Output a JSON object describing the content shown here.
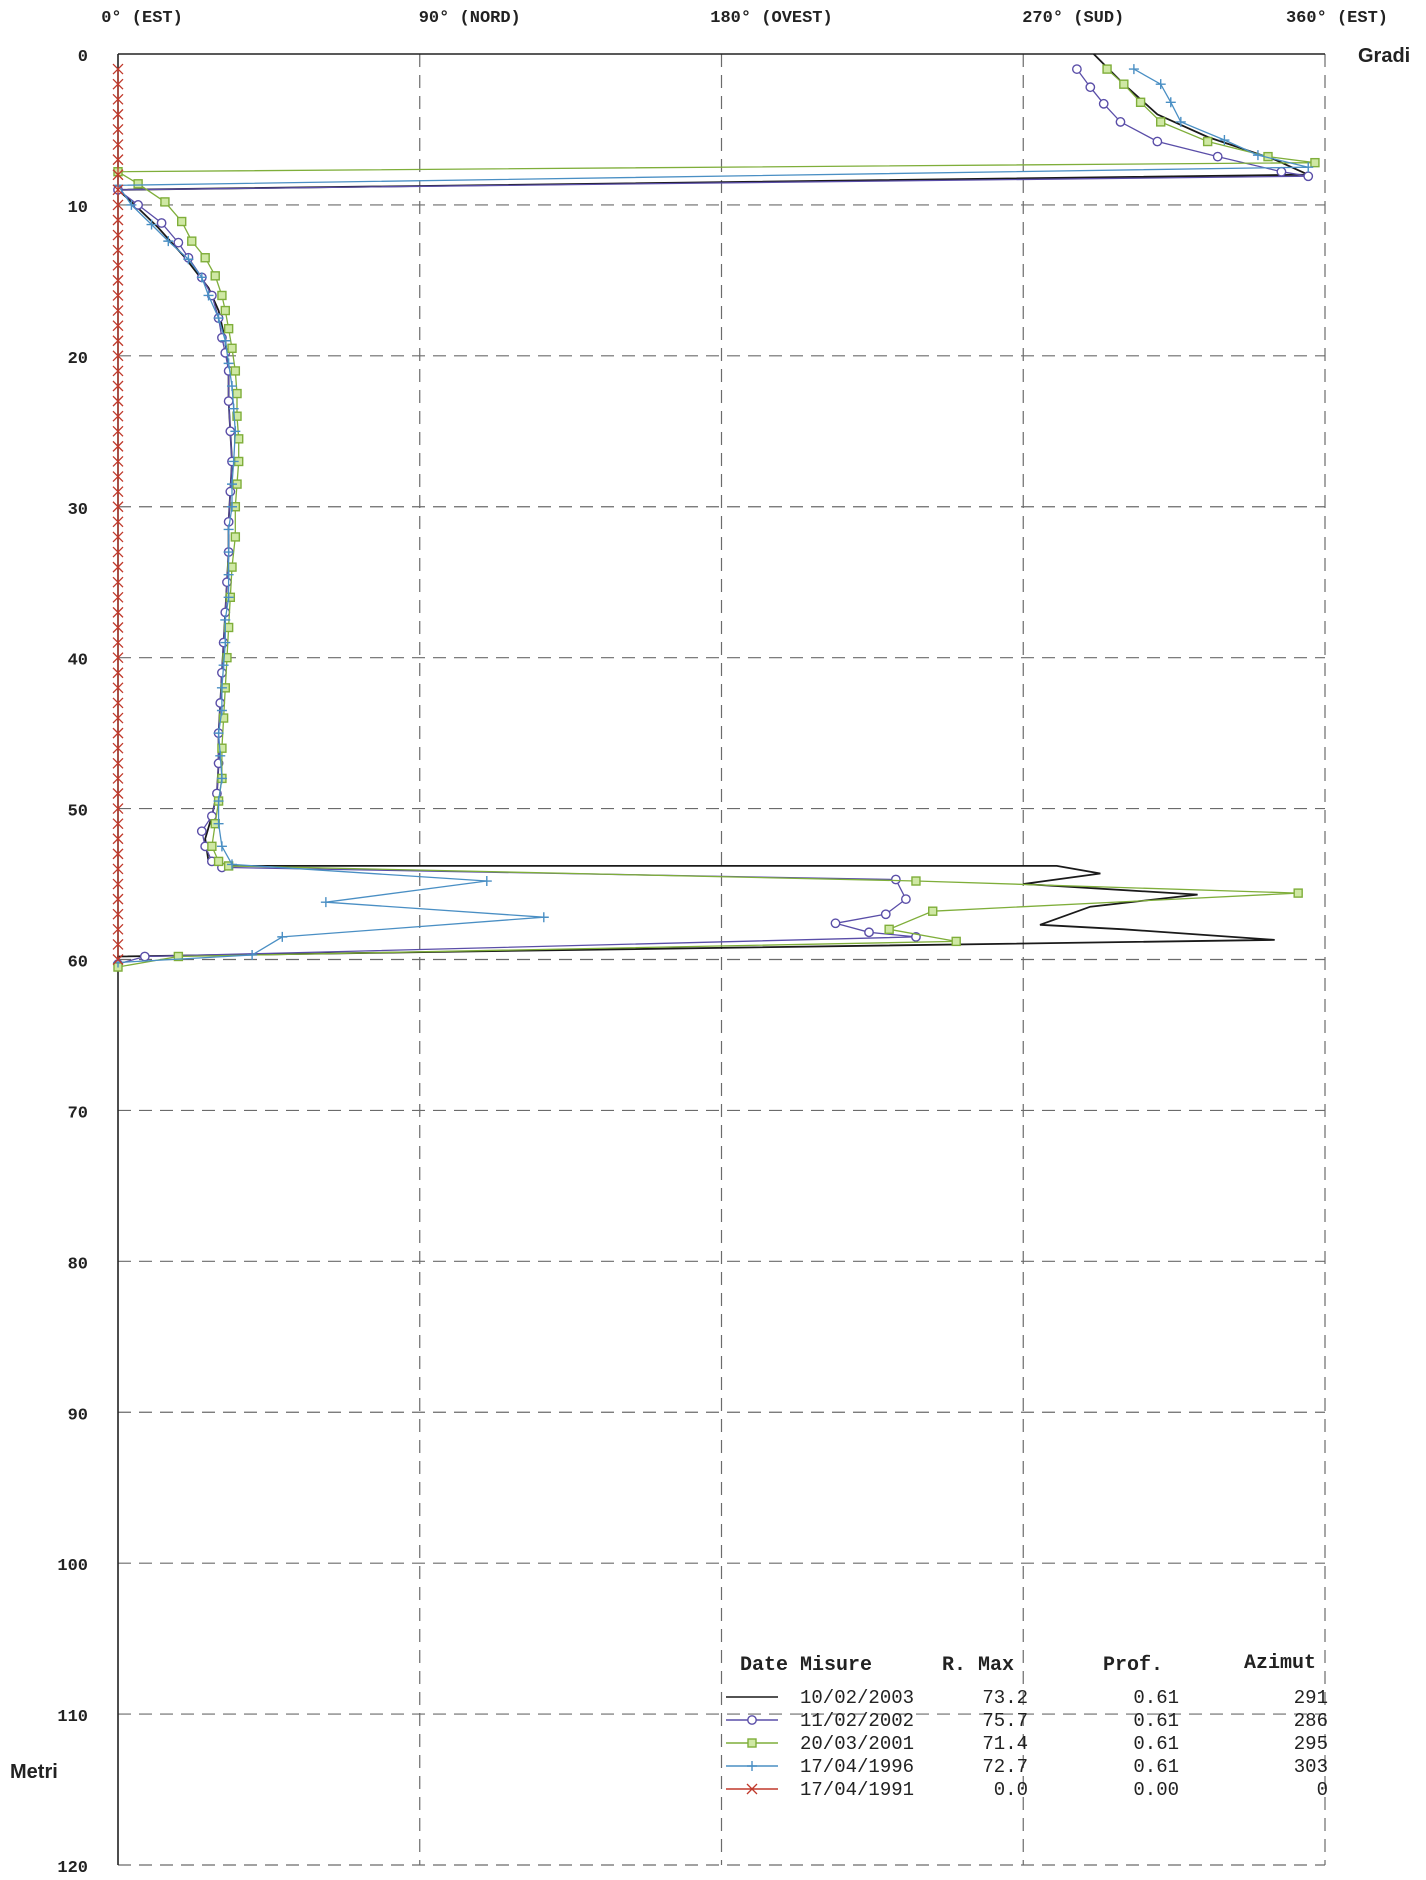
{
  "chart_data": {
    "type": "line",
    "x_axis": {
      "label": "Gradi",
      "min": 0,
      "max": 360,
      "ticks": [
        {
          "value": 0,
          "label": "0° (EST)"
        },
        {
          "value": 90,
          "label": "90° (NORD)"
        },
        {
          "value": 180,
          "label": "180° (OVEST)"
        },
        {
          "value": 270,
          "label": "270° (SUD)"
        },
        {
          "value": 360,
          "label": "360° (EST)"
        }
      ]
    },
    "y_axis": {
      "label": "Metri",
      "min": 0,
      "max": 120,
      "reversed": true,
      "ticks": [
        "0",
        "10",
        "20",
        "30",
        "40",
        "50",
        "60",
        "70",
        "80",
        "90",
        "100",
        "110",
        "120"
      ]
    },
    "grid": "dashed",
    "legend": {
      "placement": "bottom-right",
      "headers": {
        "date": "Date Misure",
        "rmax": "R. Max",
        "prof": "Prof.",
        "azimut": "Azimut"
      },
      "rows": [
        {
          "date": "10/02/2003",
          "rmax": "73.2",
          "prof": "0.61",
          "azimut": "291",
          "color": "#1a1a1a",
          "marker": "none"
        },
        {
          "date": "11/02/2002",
          "rmax": "75.7",
          "prof": "0.61",
          "azimut": "286",
          "color": "#5a4ea8",
          "marker": "circle"
        },
        {
          "date": "20/03/2001",
          "rmax": "71.4",
          "prof": "0.61",
          "azimut": "295",
          "color": "#7fae3a",
          "marker": "square"
        },
        {
          "date": "17/04/1996",
          "rmax": "72.7",
          "prof": "0.61",
          "azimut": "303",
          "color": "#4a8fc4",
          "marker": "plus"
        },
        {
          "date": "17/04/1991",
          "rmax": "0.0",
          "prof": "0.00",
          "azimut": "0",
          "color": "#c0392b",
          "marker": "x"
        }
      ]
    },
    "series": [
      {
        "name": "10/02/2003",
        "color": "#1a1a1a",
        "marker": "none",
        "points": [
          [
            291,
            0
          ],
          [
            300,
            2
          ],
          [
            310,
            4
          ],
          [
            325,
            5.5
          ],
          [
            345,
            7
          ],
          [
            355,
            8
          ],
          [
            0,
            9
          ],
          [
            5,
            10
          ],
          [
            12,
            11.5
          ],
          [
            20,
            13.5
          ],
          [
            27,
            15.5
          ],
          [
            30,
            17
          ],
          [
            32,
            19
          ],
          [
            33,
            21
          ],
          [
            33,
            23
          ],
          [
            33.5,
            25
          ],
          [
            34,
            27
          ],
          [
            33.5,
            29
          ],
          [
            33,
            31
          ],
          [
            33,
            33
          ],
          [
            32.5,
            35
          ],
          [
            32,
            37
          ],
          [
            31.5,
            39
          ],
          [
            31,
            41
          ],
          [
            30.5,
            43
          ],
          [
            30,
            45
          ],
          [
            30,
            47
          ],
          [
            29.5,
            49
          ],
          [
            28,
            50.5
          ],
          [
            26,
            52
          ],
          [
            27,
            53.5
          ],
          [
            32,
            53.8
          ],
          [
            280,
            53.8
          ],
          [
            293,
            54.3
          ],
          [
            270,
            55
          ],
          [
            322,
            55.7
          ],
          [
            290,
            56.5
          ],
          [
            275,
            57.7
          ],
          [
            300,
            58
          ],
          [
            345,
            58.7
          ],
          [
            0,
            59.8
          ],
          [
            0,
            60.5
          ]
        ]
      },
      {
        "name": "11/02/2002",
        "color": "#5a4ea8",
        "marker": "circle",
        "points": [
          [
            286,
            1
          ],
          [
            290,
            2.2
          ],
          [
            294,
            3.3
          ],
          [
            299,
            4.5
          ],
          [
            310,
            5.8
          ],
          [
            328,
            6.8
          ],
          [
            347,
            7.8
          ],
          [
            355,
            8.1
          ],
          [
            0,
            9
          ],
          [
            6,
            10
          ],
          [
            13,
            11.2
          ],
          [
            18,
            12.5
          ],
          [
            21,
            13.5
          ],
          [
            25,
            14.8
          ],
          [
            28,
            16
          ],
          [
            30,
            17.5
          ],
          [
            31,
            18.8
          ],
          [
            32,
            19.8
          ],
          [
            33,
            21
          ],
          [
            33,
            23
          ],
          [
            33.5,
            25
          ],
          [
            34,
            27
          ],
          [
            33.5,
            29
          ],
          [
            33,
            31
          ],
          [
            33,
            33
          ],
          [
            32.5,
            35
          ],
          [
            32,
            37
          ],
          [
            31.5,
            39
          ],
          [
            31,
            41
          ],
          [
            30.5,
            43
          ],
          [
            30,
            45
          ],
          [
            30,
            47
          ],
          [
            29.5,
            49
          ],
          [
            28,
            50.5
          ],
          [
            25,
            51.5
          ],
          [
            26,
            52.5
          ],
          [
            28,
            53.5
          ],
          [
            31,
            53.9
          ],
          [
            232,
            54.7
          ],
          [
            235,
            56
          ],
          [
            229,
            57
          ],
          [
            214,
            57.6
          ],
          [
            224,
            58.2
          ],
          [
            238,
            58.5
          ],
          [
            8,
            59.8
          ],
          [
            0,
            60.3
          ]
        ]
      },
      {
        "name": "20/03/2001",
        "color": "#7fae3a",
        "marker": "square",
        "points": [
          [
            295,
            1
          ],
          [
            300,
            2
          ],
          [
            305,
            3.2
          ],
          [
            311,
            4.5
          ],
          [
            325,
            5.8
          ],
          [
            343,
            6.8
          ],
          [
            357,
            7.2
          ],
          [
            0,
            7.8
          ],
          [
            6,
            8.6
          ],
          [
            14,
            9.8
          ],
          [
            19,
            11.1
          ],
          [
            22,
            12.4
          ],
          [
            26,
            13.5
          ],
          [
            29,
            14.7
          ],
          [
            31,
            16
          ],
          [
            32,
            17
          ],
          [
            33,
            18.2
          ],
          [
            34,
            19.5
          ],
          [
            35,
            21
          ],
          [
            35.5,
            22.5
          ],
          [
            35.5,
            24
          ],
          [
            36,
            25.5
          ],
          [
            36,
            27
          ],
          [
            35.5,
            28.5
          ],
          [
            35,
            30
          ],
          [
            35,
            32
          ],
          [
            34,
            34
          ],
          [
            33.5,
            36
          ],
          [
            33,
            38
          ],
          [
            32.5,
            40
          ],
          [
            32,
            42
          ],
          [
            31.5,
            44
          ],
          [
            31,
            46
          ],
          [
            31,
            48
          ],
          [
            30,
            49.5
          ],
          [
            29,
            51
          ],
          [
            28,
            52.5
          ],
          [
            30,
            53.5
          ],
          [
            33,
            53.8
          ],
          [
            238,
            54.8
          ],
          [
            352,
            55.6
          ],
          [
            243,
            56.8
          ],
          [
            230,
            58
          ],
          [
            250,
            58.8
          ],
          [
            18,
            59.8
          ],
          [
            0,
            60.5
          ]
        ]
      },
      {
        "name": "17/04/1996",
        "color": "#4a8fc4",
        "marker": "plus",
        "points": [
          [
            303,
            1
          ],
          [
            311,
            2
          ],
          [
            314,
            3.2
          ],
          [
            317,
            4.5
          ],
          [
            330,
            5.7
          ],
          [
            340,
            6.7
          ],
          [
            355,
            7.5
          ],
          [
            0,
            8.7
          ],
          [
            4,
            10
          ],
          [
            10,
            11.3
          ],
          [
            15,
            12.4
          ],
          [
            21,
            13.6
          ],
          [
            25,
            14.8
          ],
          [
            27,
            16
          ],
          [
            30,
            17.5
          ],
          [
            32,
            19
          ],
          [
            33,
            20.5
          ],
          [
            34,
            22
          ],
          [
            34.5,
            23.5
          ],
          [
            35,
            25
          ],
          [
            34.5,
            27
          ],
          [
            34,
            28.5
          ],
          [
            34,
            30
          ],
          [
            33,
            31.5
          ],
          [
            33,
            33
          ],
          [
            33,
            34.5
          ],
          [
            33,
            36
          ],
          [
            32,
            37.5
          ],
          [
            32,
            39
          ],
          [
            31.5,
            40.5
          ],
          [
            31,
            42
          ],
          [
            31,
            43.5
          ],
          [
            30,
            45
          ],
          [
            30.5,
            46.5
          ],
          [
            31,
            48
          ],
          [
            30,
            49.5
          ],
          [
            30,
            51
          ],
          [
            31,
            52.5
          ],
          [
            34,
            53.7
          ],
          [
            110,
            54.8
          ],
          [
            62,
            56.2
          ],
          [
            127,
            57.2
          ],
          [
            49,
            58.5
          ],
          [
            40,
            59.7
          ],
          [
            0,
            60.2
          ]
        ]
      },
      {
        "name": "17/04/1991",
        "color": "#c0392b",
        "marker": "x",
        "points": [
          [
            0,
            1
          ],
          [
            0,
            2
          ],
          [
            0,
            3
          ],
          [
            0,
            4
          ],
          [
            0,
            5
          ],
          [
            0,
            6
          ],
          [
            0,
            7
          ],
          [
            0,
            8
          ],
          [
            0,
            9
          ],
          [
            0,
            10
          ],
          [
            0,
            11
          ],
          [
            0,
            12
          ],
          [
            0,
            13
          ],
          [
            0,
            14
          ],
          [
            0,
            15
          ],
          [
            0,
            16
          ],
          [
            0,
            17
          ],
          [
            0,
            18
          ],
          [
            0,
            19
          ],
          [
            0,
            20
          ],
          [
            0,
            21
          ],
          [
            0,
            22
          ],
          [
            0,
            23
          ],
          [
            0,
            24
          ],
          [
            0,
            25
          ],
          [
            0,
            26
          ],
          [
            0,
            27
          ],
          [
            0,
            28
          ],
          [
            0,
            29
          ],
          [
            0,
            30
          ],
          [
            0,
            31
          ],
          [
            0,
            32
          ],
          [
            0,
            33
          ],
          [
            0,
            34
          ],
          [
            0,
            35
          ],
          [
            0,
            36
          ],
          [
            0,
            37
          ],
          [
            0,
            38
          ],
          [
            0,
            39
          ],
          [
            0,
            40
          ],
          [
            0,
            41
          ],
          [
            0,
            42
          ],
          [
            0,
            43
          ],
          [
            0,
            44
          ],
          [
            0,
            45
          ],
          [
            0,
            46
          ],
          [
            0,
            47
          ],
          [
            0,
            48
          ],
          [
            0,
            49
          ],
          [
            0,
            50
          ],
          [
            0,
            51
          ],
          [
            0,
            52
          ],
          [
            0,
            53
          ],
          [
            0,
            54
          ],
          [
            0,
            55
          ],
          [
            0,
            56
          ],
          [
            0,
            57
          ],
          [
            0,
            58
          ],
          [
            0,
            59
          ],
          [
            0,
            60
          ]
        ]
      }
    ]
  }
}
